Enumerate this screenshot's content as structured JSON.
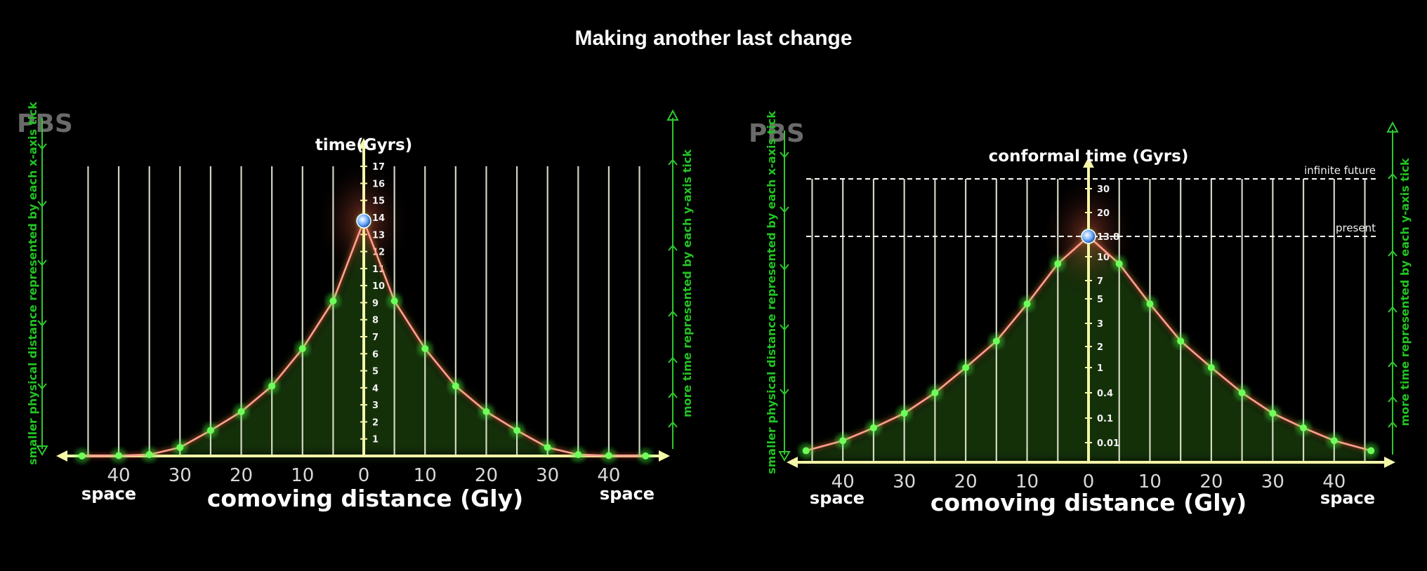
{
  "title": "Making another last change",
  "colors": {
    "background": "#000000",
    "curve": "#ff9a8a",
    "points": "#3cff3c",
    "axis": "#f4f6a8",
    "side_text": "#22c322",
    "watermark": "#6a6a6a"
  },
  "chart_data": [
    {
      "type": "line",
      "watermark": "PBS",
      "ylabel": "time(Gyrs)",
      "xlabel": "comoving distance (Gly)",
      "x_side_labels": [
        "space",
        "space"
      ],
      "left_side_label": "smaller physical distance represented by each x-axis tick",
      "right_side_label": "more time represented by each y-axis tick",
      "xlim": [
        -47,
        47
      ],
      "ylim": [
        0,
        17
      ],
      "xticks": [
        -40,
        -30,
        -20,
        -10,
        0,
        10,
        20,
        30,
        40
      ],
      "xtick_labels": [
        "40",
        "30",
        "20",
        "10",
        "0",
        "10",
        "20",
        "30",
        "40"
      ],
      "yticks": [
        1,
        2,
        3,
        4,
        5,
        6,
        7,
        8,
        9,
        10,
        11,
        12,
        13,
        14,
        15,
        16,
        17
      ],
      "ytick_labels": [
        "1",
        "2",
        "3",
        "4",
        "5",
        "6",
        "7",
        "8",
        "9",
        "10",
        "11",
        "12",
        "13",
        "14",
        "15",
        "16",
        "17"
      ],
      "gridlines_x": [
        -45,
        -40,
        -35,
        -30,
        -25,
        -20,
        -15,
        -10,
        -5,
        5,
        10,
        15,
        20,
        25,
        30,
        35,
        40,
        45
      ],
      "series": [
        {
          "x": [
            -46,
            -40,
            -35,
            -30,
            -25,
            -20,
            -15,
            -10,
            -5,
            0,
            5,
            10,
            15,
            20,
            25,
            30,
            35,
            40,
            46
          ],
          "y": [
            0.0,
            0.02,
            0.08,
            0.5,
            1.5,
            2.6,
            4.1,
            6.3,
            9.1,
            13.8,
            9.1,
            6.3,
            4.1,
            2.6,
            1.5,
            0.5,
            0.08,
            0.02,
            0.0
          ]
        }
      ],
      "marker": {
        "x": 0,
        "y": 13.8,
        "icon": "earth-icon"
      }
    },
    {
      "type": "line",
      "watermark": "PBS",
      "ylabel": "conformal time (Gyrs)",
      "xlabel": "comoving distance (Gly)",
      "x_side_labels": [
        "space",
        "space"
      ],
      "left_side_label": "smaller physical distance represented by each x-axis tick",
      "right_side_label": "more time represented by each y-axis tick",
      "xlim": [
        -47,
        47
      ],
      "xticks": [
        -40,
        -30,
        -20,
        -10,
        0,
        10,
        20,
        30,
        40
      ],
      "xtick_labels": [
        "40",
        "30",
        "20",
        "10",
        "0",
        "10",
        "20",
        "30",
        "40"
      ],
      "ytick_labels": [
        "0.01",
        "0.1",
        "0.4",
        "1",
        "2",
        "3",
        "5",
        "7",
        "10",
        "13.8",
        "20",
        "30"
      ],
      "ytick_positions": [
        0.01,
        0.1,
        0.4,
        1,
        2,
        3,
        5,
        7,
        10,
        13.8,
        20,
        30
      ],
      "gridlines_x": [
        -45,
        -40,
        -35,
        -30,
        -25,
        -20,
        -15,
        -10,
        -5,
        5,
        10,
        15,
        20,
        25,
        30,
        35,
        40,
        45
      ],
      "reference_lines": [
        {
          "label": "infinite future",
          "y": 33
        },
        {
          "label": "present",
          "y": 13.8
        }
      ],
      "series": [
        {
          "x": [
            -46,
            -40,
            -35,
            -30,
            -25,
            -20,
            -15,
            -10,
            -5,
            0,
            5,
            10,
            15,
            20,
            25,
            30,
            35,
            40,
            46
          ],
          "y": [
            0.004,
            0.012,
            0.04,
            0.13,
            0.4,
            1.0,
            2.2,
            4.5,
            9.0,
            13.8,
            9.0,
            4.5,
            2.2,
            1.0,
            0.4,
            0.13,
            0.04,
            0.012,
            0.004
          ]
        }
      ],
      "marker": {
        "x": 0,
        "y": 13.8,
        "icon": "earth-icon"
      }
    }
  ]
}
